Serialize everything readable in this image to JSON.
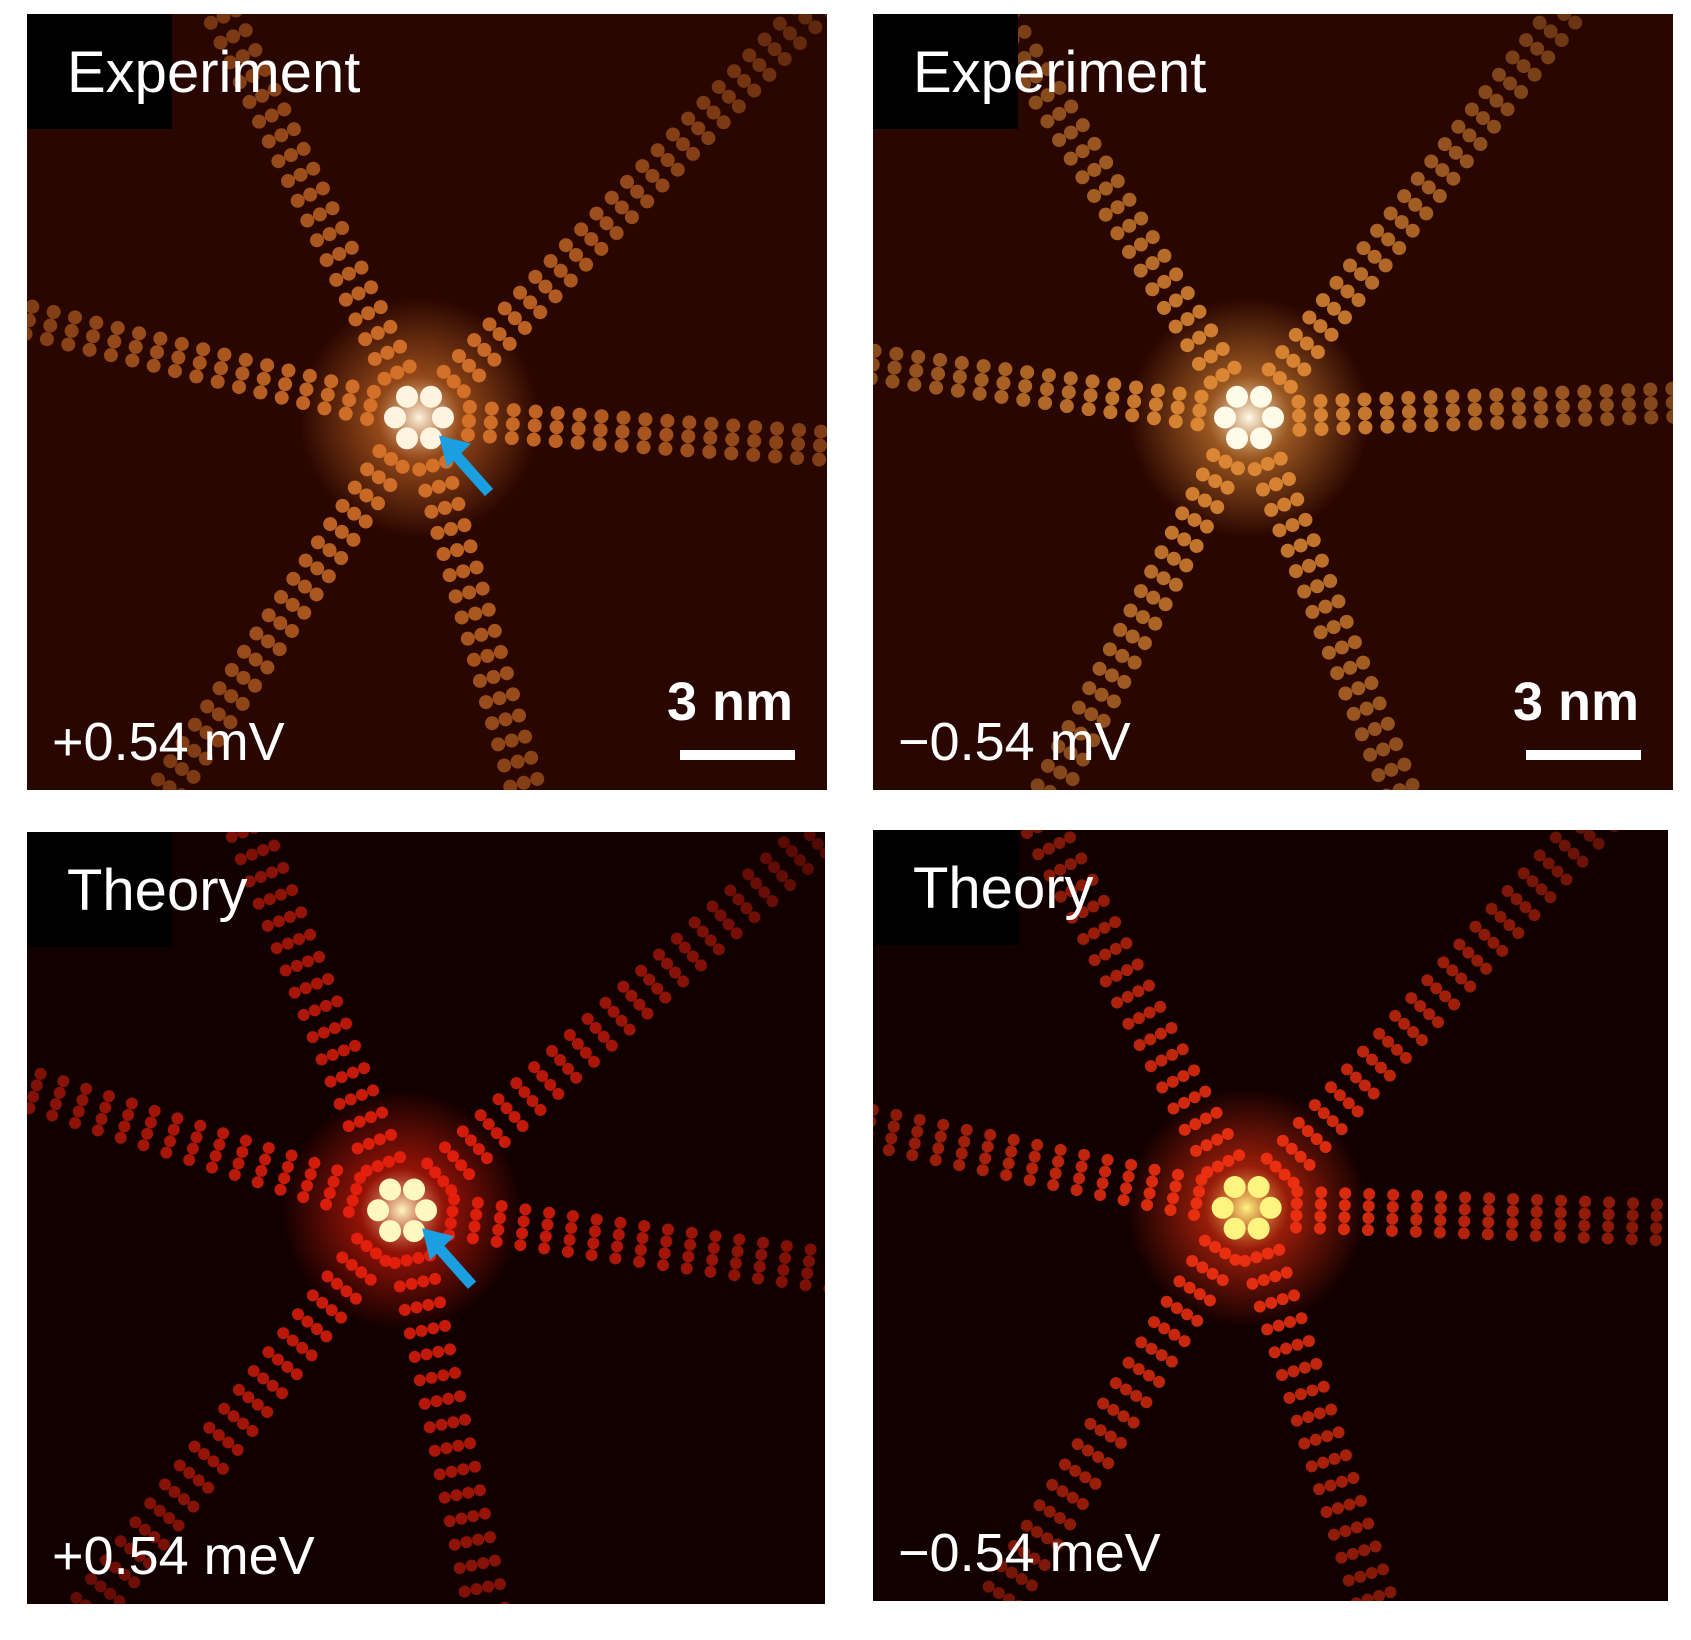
{
  "panels": [
    {
      "title": "Experiment",
      "label": "+0.54 mV",
      "scale_bar": "3 nm"
    },
    {
      "title": "Experiment",
      "label": "−0.54 mV",
      "scale_bar": "3 nm"
    },
    {
      "title": "Theory",
      "label": "+0.54 meV"
    },
    {
      "title": "Theory",
      "label": "−0.54 meV"
    }
  ]
}
